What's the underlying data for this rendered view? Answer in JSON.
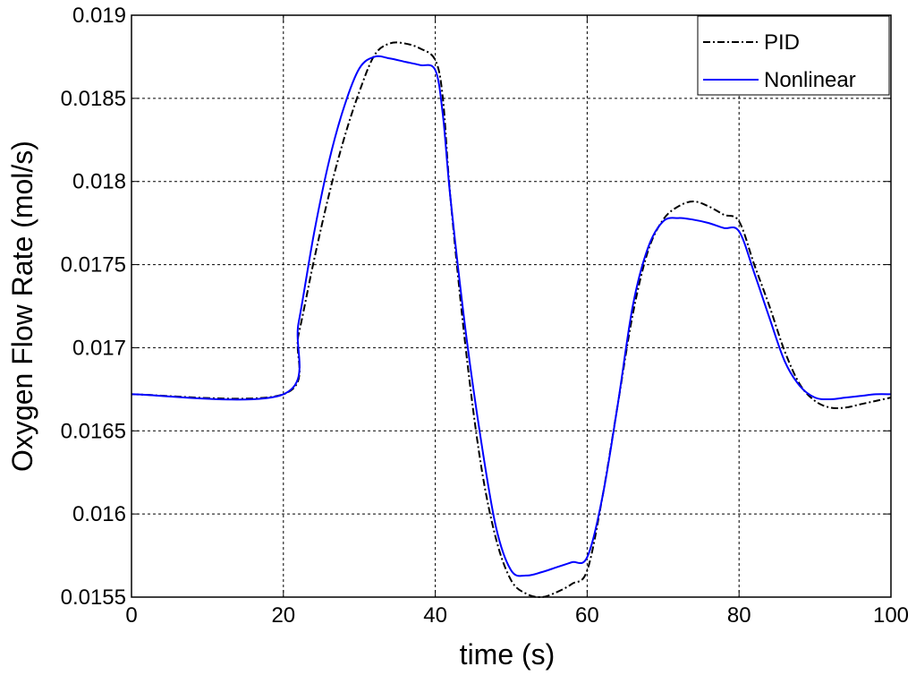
{
  "chart_data": {
    "type": "line",
    "xlabel": "time (s)",
    "ylabel": "Oxygen Flow Rate (mol/s)",
    "xlim": [
      0,
      100
    ],
    "ylim": [
      0.0155,
      0.019
    ],
    "xticks": [
      0,
      20,
      40,
      60,
      80,
      100
    ],
    "xtick_labels": [
      "0",
      "20",
      "40",
      "60",
      "80",
      "100"
    ],
    "yticks": [
      0.0155,
      0.016,
      0.0165,
      0.017,
      0.0175,
      0.018,
      0.0185,
      0.019
    ],
    "ytick_labels": [
      "0.0155",
      "0.016",
      "0.0165",
      "0.017",
      "0.0175",
      "0.018",
      "0.0185",
      "0.019"
    ],
    "grid": true,
    "legend_position": "top-right",
    "series": [
      {
        "name": "PID",
        "color": "#000000",
        "style": "dash-dot",
        "x": [
          0,
          20,
          22,
          24,
          26,
          28,
          30,
          32,
          34,
          36,
          38,
          40,
          41,
          42,
          44,
          46,
          48,
          50,
          52,
          54,
          56,
          58,
          60,
          62,
          64,
          66,
          68,
          70,
          72,
          74,
          76,
          78,
          80,
          82,
          84,
          86,
          88,
          90,
          92,
          94,
          96,
          98,
          100
        ],
        "y": [
          0.01672,
          0.01672,
          0.01708,
          0.01752,
          0.01792,
          0.01826,
          0.01854,
          0.01876,
          0.01883,
          0.01883,
          0.0188,
          0.01873,
          0.0185,
          0.0179,
          0.017,
          0.0163,
          0.01585,
          0.0156,
          0.01552,
          0.0155,
          0.01553,
          0.01558,
          0.01566,
          0.0161,
          0.01665,
          0.0172,
          0.01758,
          0.01777,
          0.01785,
          0.01788,
          0.01785,
          0.0178,
          0.01776,
          0.0175,
          0.01725,
          0.01698,
          0.01678,
          0.01668,
          0.01664,
          0.01664,
          0.01666,
          0.01668,
          0.0167
        ]
      },
      {
        "name": "Nonlinear",
        "color": "#0000ff",
        "style": "solid",
        "x": [
          0,
          20,
          22,
          24,
          26,
          28,
          30,
          32,
          34,
          36,
          38,
          40,
          41,
          42,
          44,
          46,
          48,
          50,
          52,
          54,
          56,
          58,
          60,
          62,
          64,
          66,
          68,
          70,
          72,
          74,
          76,
          78,
          80,
          82,
          84,
          86,
          88,
          90,
          92,
          94,
          96,
          98,
          100
        ],
        "y": [
          0.01672,
          0.01672,
          0.01715,
          0.01768,
          0.01812,
          0.01845,
          0.01868,
          0.01875,
          0.01874,
          0.01872,
          0.0187,
          0.01867,
          0.0184,
          0.0179,
          0.0171,
          0.01645,
          0.01592,
          0.01566,
          0.01563,
          0.01565,
          0.01568,
          0.01571,
          0.01574,
          0.0161,
          0.01665,
          0.01725,
          0.0176,
          0.01776,
          0.01778,
          0.01777,
          0.01775,
          0.01772,
          0.0177,
          0.01745,
          0.01718,
          0.01692,
          0.01677,
          0.0167,
          0.01669,
          0.0167,
          0.01671,
          0.01672,
          0.01672
        ]
      }
    ]
  }
}
